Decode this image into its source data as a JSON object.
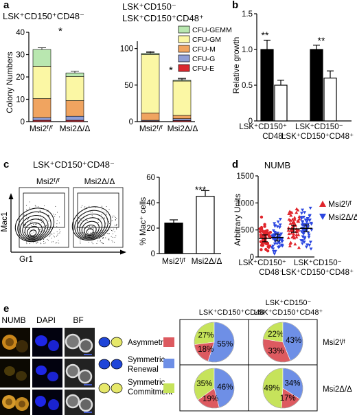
{
  "panels": {
    "a": {
      "letter": "a",
      "left": {
        "title": "LSK⁺CD150⁺CD48⁻",
        "ylabel": "Colony Numbers",
        "yticks": [
          "0",
          "10",
          "20",
          "30",
          "40"
        ],
        "xlabels": [
          "Msi2ᶠ/ᶠ",
          "Msi2Δ/Δ"
        ],
        "sig": "*"
      },
      "right": {
        "title_l1": "LSK⁺CD150⁻",
        "title_l2": "LSK⁺CD150⁺CD48⁺",
        "yticks": [
          "0",
          "50",
          "100"
        ],
        "xlabels": [
          "Msi2ᶠ/ᶠ",
          "Msi2Δ/Δ"
        ],
        "sig": "*"
      },
      "legend": [
        "CFU-GEMM",
        "CFU-GM",
        "CFU-M",
        "CFU-G",
        "CFU-E"
      ]
    },
    "b": {
      "letter": "b",
      "ylabel": "Relative growth",
      "yticks": [
        "0",
        "0.5",
        "1.0",
        "1.5"
      ],
      "sig1": "**",
      "sig2": "**",
      "group1_l1": "LSK⁺CD150⁺",
      "group1_l2": "CD48⁻",
      "group2_l1": "LSK⁺CD150⁻",
      "group2_l2": "LSK⁺CD150⁺CD48⁺"
    },
    "c": {
      "letter": "c",
      "title": "LSK⁺CD150⁺CD48⁻",
      "flow_label_1": "Msi2ᶠ/ᶠ",
      "flow_label_2": "Msi2Δ/Δ",
      "flow_y": "Mac1",
      "flow_x": "Gr1",
      "ylabel": "% Mac⁺ cells",
      "yticks": [
        "0",
        "20",
        "40",
        "60"
      ],
      "xlabels": [
        "Msi2ᶠ/ᶠ",
        "Msi2Δ/Δ"
      ],
      "sig": "***"
    },
    "d": {
      "letter": "d",
      "title": "NUMB",
      "ylabel": "Arbitrary Units",
      "yticks": [
        "0",
        "500",
        "1000",
        "1500"
      ],
      "legend": [
        "Msi2ᶠ/ᶠ",
        "Msi2Δ/Δ"
      ],
      "group1_l1": "LSK⁺CD150⁺",
      "group1_l2": "CD48⁻",
      "group2_l1": "LSK⁺CD150⁻",
      "group2_l2": "LSK⁺CD150⁺CD48⁺"
    },
    "e": {
      "letter": "e",
      "col_labels": [
        "NUMB",
        "DAPI",
        "BF"
      ],
      "division_labels": [
        "Asymmetric",
        "Symmetric",
        "Renewal",
        "Symmetric",
        "Commitment"
      ],
      "col1_title": "LSK⁺CD150⁺CD48⁻",
      "col2_title_l1": "LSK⁺CD150⁻",
      "col2_title_l2": "LSK⁺CD150⁺CD48⁺",
      "row_labels": [
        "Msi2ᶠ/ᶠ",
        "Msi2Δ/Δ"
      ],
      "pies": [
        {
          "green": "27%",
          "blue": "55%",
          "red": "18%"
        },
        {
          "green": "22%",
          "blue": "43%",
          "red": "33%"
        },
        {
          "green": "35%",
          "blue": "46%",
          "red": "19%"
        },
        {
          "green": "49%",
          "blue": "34%",
          "red": "17%"
        }
      ]
    }
  },
  "colors": {
    "gemm": "#b9e7b0",
    "gm": "#fbf7a4",
    "m": "#f0a460",
    "g": "#8f9ed6",
    "e": "#d9272e",
    "pie_green": "#c6e35b",
    "pie_blue": "#6e8fe6",
    "pie_red": "#dd5a60",
    "dot_red": "#e0242b",
    "dot_blue": "#2b46e0"
  },
  "chart_data": [
    {
      "type": "bar",
      "panel": "a-left",
      "categories": [
        "Msi2ᶠ/ᶠ",
        "Msi2Δ/Δ"
      ],
      "series": [
        {
          "name": "CFU-E",
          "values": [
            0.6,
            0.6
          ]
        },
        {
          "name": "CFU-G",
          "values": [
            1.2,
            1.8
          ]
        },
        {
          "name": "CFU-M",
          "values": [
            8.5,
            7.0
          ]
        },
        {
          "name": "CFU-GM",
          "values": [
            14.5,
            10.8
          ]
        },
        {
          "name": "CFU-GEMM",
          "values": [
            7.5,
            1.6
          ]
        }
      ],
      "ylim": [
        0,
        40
      ]
    },
    {
      "type": "bar",
      "panel": "a-right",
      "categories": [
        "Msi2ᶠ/ᶠ",
        "Msi2Δ/Δ"
      ],
      "series": [
        {
          "name": "CFU-E",
          "values": [
            0.8,
            1.5
          ]
        },
        {
          "name": "CFU-G",
          "values": [
            1.0,
            2.5
          ]
        },
        {
          "name": "CFU-M",
          "values": [
            10.0,
            4.5
          ]
        },
        {
          "name": "CFU-GM",
          "values": [
            80.0,
            47.0
          ]
        },
        {
          "name": "CFU-GEMM",
          "values": [
            1.5,
            1.0
          ]
        }
      ],
      "ylim": [
        0,
        100
      ]
    },
    {
      "type": "bar",
      "panel": "b",
      "categories": [
        "LSK⁺CD150⁺CD48⁻",
        "LSK⁺CD150⁻ LSK⁺CD150⁺CD48⁺"
      ],
      "series": [
        {
          "name": "Msi2ᶠ/ᶠ",
          "values": [
            1.0,
            1.0
          ],
          "errors": [
            0.13,
            0.06
          ]
        },
        {
          "name": "Msi2Δ/Δ",
          "values": [
            0.5,
            0.6
          ],
          "errors": [
            0.07,
            0.1
          ]
        }
      ],
      "ylim": [
        0,
        1.5
      ]
    },
    {
      "type": "bar",
      "panel": "c",
      "categories": [
        "Msi2ᶠ/ᶠ",
        "Msi2Δ/Δ"
      ],
      "values": [
        24,
        45
      ],
      "errors": [
        2.5,
        4.5
      ],
      "ylim": [
        0,
        60
      ]
    },
    {
      "type": "scatter",
      "panel": "d",
      "groups": [
        "Msi2ᶠ/ᶠ LSK⁺CD150⁺CD48⁻",
        "Msi2Δ/Δ LSK⁺CD150⁺CD48⁻",
        "Msi2ᶠ/ᶠ LSK⁺CD150⁻/CD48⁺",
        "Msi2Δ/Δ LSK⁺CD150⁻/CD48⁺"
      ],
      "means": [
        345,
        360,
        520,
        530
      ],
      "ylim": [
        0,
        1500
      ]
    },
    {
      "type": "pie",
      "panel": "e",
      "labels": [
        "Asymmetric",
        "Symmetric Renewal",
        "Symmetric Commitment"
      ],
      "pies": [
        {
          "values": [
            18,
            55,
            27
          ]
        },
        {
          "values": [
            33,
            43,
            22
          ]
        },
        {
          "values": [
            19,
            46,
            35
          ]
        },
        {
          "values": [
            17,
            34,
            49
          ]
        }
      ]
    }
  ]
}
